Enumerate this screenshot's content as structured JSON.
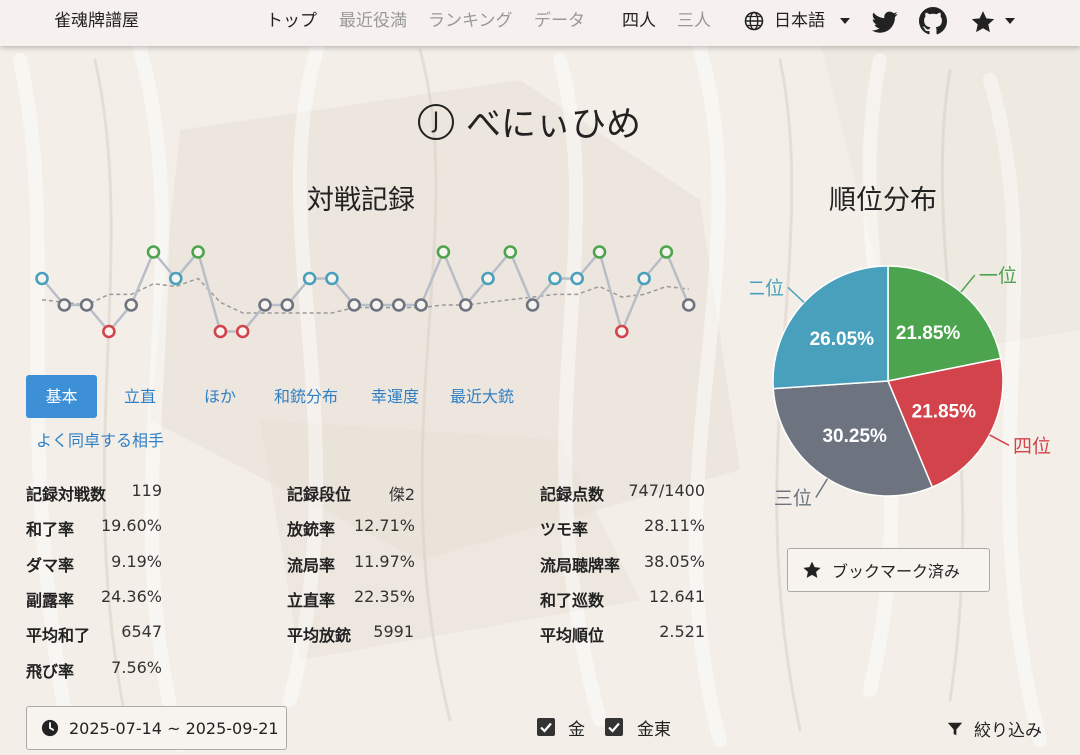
{
  "nav": {
    "brand": "雀魂牌譜屋",
    "links": [
      "トップ",
      "最近役満",
      "ランキング",
      "データ"
    ],
    "modes": [
      "四人",
      "三人"
    ],
    "language": "日本語"
  },
  "player": {
    "badge": "J",
    "name": "べにぃひめ"
  },
  "record": {
    "title": "対戦記録",
    "ranks": [
      2,
      3,
      3,
      4,
      3,
      1,
      2,
      1,
      4,
      4,
      3,
      3,
      2,
      2,
      3,
      3,
      3,
      3,
      1,
      3,
      2,
      1,
      3,
      2,
      2,
      1,
      4,
      2,
      1,
      3
    ],
    "avg": [
      2.8,
      2.9,
      3.0,
      2.6,
      2.6,
      2.2,
      2.3,
      2.0,
      2.9,
      3.3,
      3.3,
      3.3,
      3.3,
      3.3,
      3.1,
      3.1,
      3.1,
      3.1,
      3.0,
      3.0,
      2.9,
      2.8,
      2.7,
      2.6,
      2.6,
      2.3,
      2.7,
      2.6,
      2.3,
      2.4
    ],
    "colors": {
      "1": "#4da44f",
      "2": "#49a0bd",
      "3": "#6d7480",
      "4": "#d2434b"
    }
  },
  "tabs": [
    "基本",
    "立直",
    "ほか",
    "和銃分布",
    "幸運度",
    "最近大銃",
    "よく同卓する相手"
  ],
  "stats": {
    "col1": [
      {
        "label": "記録対戦数",
        "value": "119"
      },
      {
        "label": "和了率",
        "value": "19.60%"
      },
      {
        "label": "ダマ率",
        "value": "9.19%"
      },
      {
        "label": "副露率",
        "value": "24.36%"
      },
      {
        "label": "平均和了",
        "value": "6547"
      },
      {
        "label": "飛び率",
        "value": "7.56%"
      }
    ],
    "col2": [
      {
        "label": "記録段位",
        "value": "傑2"
      },
      {
        "label": "放銃率",
        "value": "12.71%"
      },
      {
        "label": "流局率",
        "value": "11.97%"
      },
      {
        "label": "立直率",
        "value": "22.35%"
      },
      {
        "label": "平均放銃",
        "value": "5991"
      }
    ],
    "col3": [
      {
        "label": "記録点数",
        "value": "747/1400"
      },
      {
        "label": "ツモ率",
        "value": "28.11%"
      },
      {
        "label": "流局聴牌率",
        "value": "38.05%"
      },
      {
        "label": "和了巡数",
        "value": "12.641"
      },
      {
        "label": "平均順位",
        "value": "2.521"
      }
    ]
  },
  "distribution": {
    "title": "順位分布",
    "chart_data": {
      "type": "pie",
      "slices": [
        {
          "label": "一位",
          "value": 21.85,
          "display": "21.85%",
          "color": "#4da44f"
        },
        {
          "label": "四位",
          "value": 21.85,
          "display": "21.85%",
          "color": "#d2434b"
        },
        {
          "label": "三位",
          "value": 30.25,
          "display": "30.25%",
          "color": "#6d7480"
        },
        {
          "label": "二位",
          "value": 26.05,
          "display": "26.05%",
          "color": "#49a0bd"
        }
      ]
    }
  },
  "bookmark": {
    "label": "ブックマーク済み"
  },
  "date_range": {
    "label": "2025-07-14 ~ 2025-09-21"
  },
  "filters": {
    "checkboxes": [
      "金",
      "金東"
    ],
    "filter_label": "絞り込み"
  }
}
